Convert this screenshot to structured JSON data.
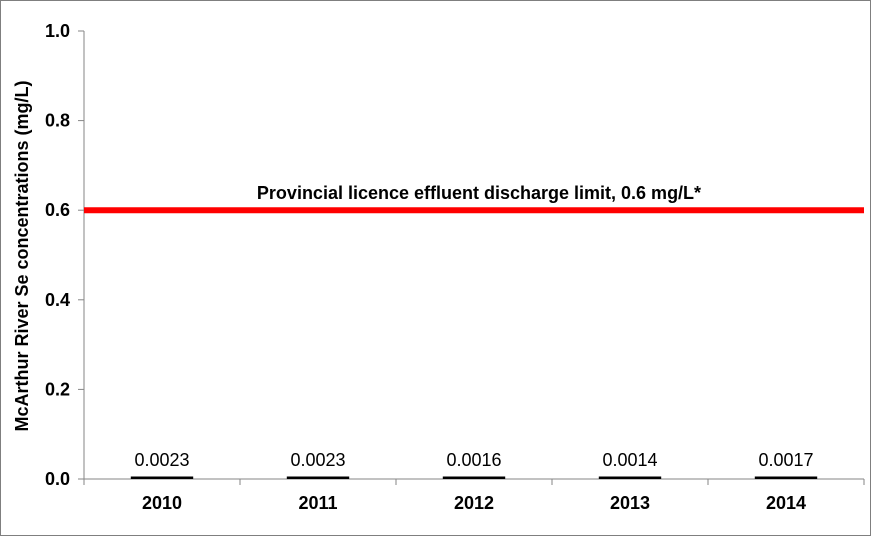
{
  "chart_data": {
    "type": "bar",
    "categories": [
      "2010",
      "2011",
      "2012",
      "2013",
      "2014"
    ],
    "values": [
      0.0023,
      0.0023,
      0.0016,
      0.0014,
      0.0017
    ],
    "data_labels": [
      "0.0023",
      "0.0023",
      "0.0016",
      "0.0014",
      "0.0017"
    ],
    "ylabel": "McArthur River Se concentrations (mg/L)",
    "xlabel": "",
    "ylim": [
      0,
      1.0
    ],
    "yticks": [
      0.0,
      0.2,
      0.4,
      0.6,
      0.8,
      1.0
    ],
    "ytick_labels": [
      "0.0",
      "0.2",
      "0.4",
      "0.6",
      "0.8",
      "1.0"
    ],
    "grid": false,
    "reference_line": {
      "value": 0.6,
      "label": "Provincial licence effluent discharge limit, 0.6 mg/L*",
      "color": "#ff0000"
    },
    "bar_color": "#000000"
  }
}
